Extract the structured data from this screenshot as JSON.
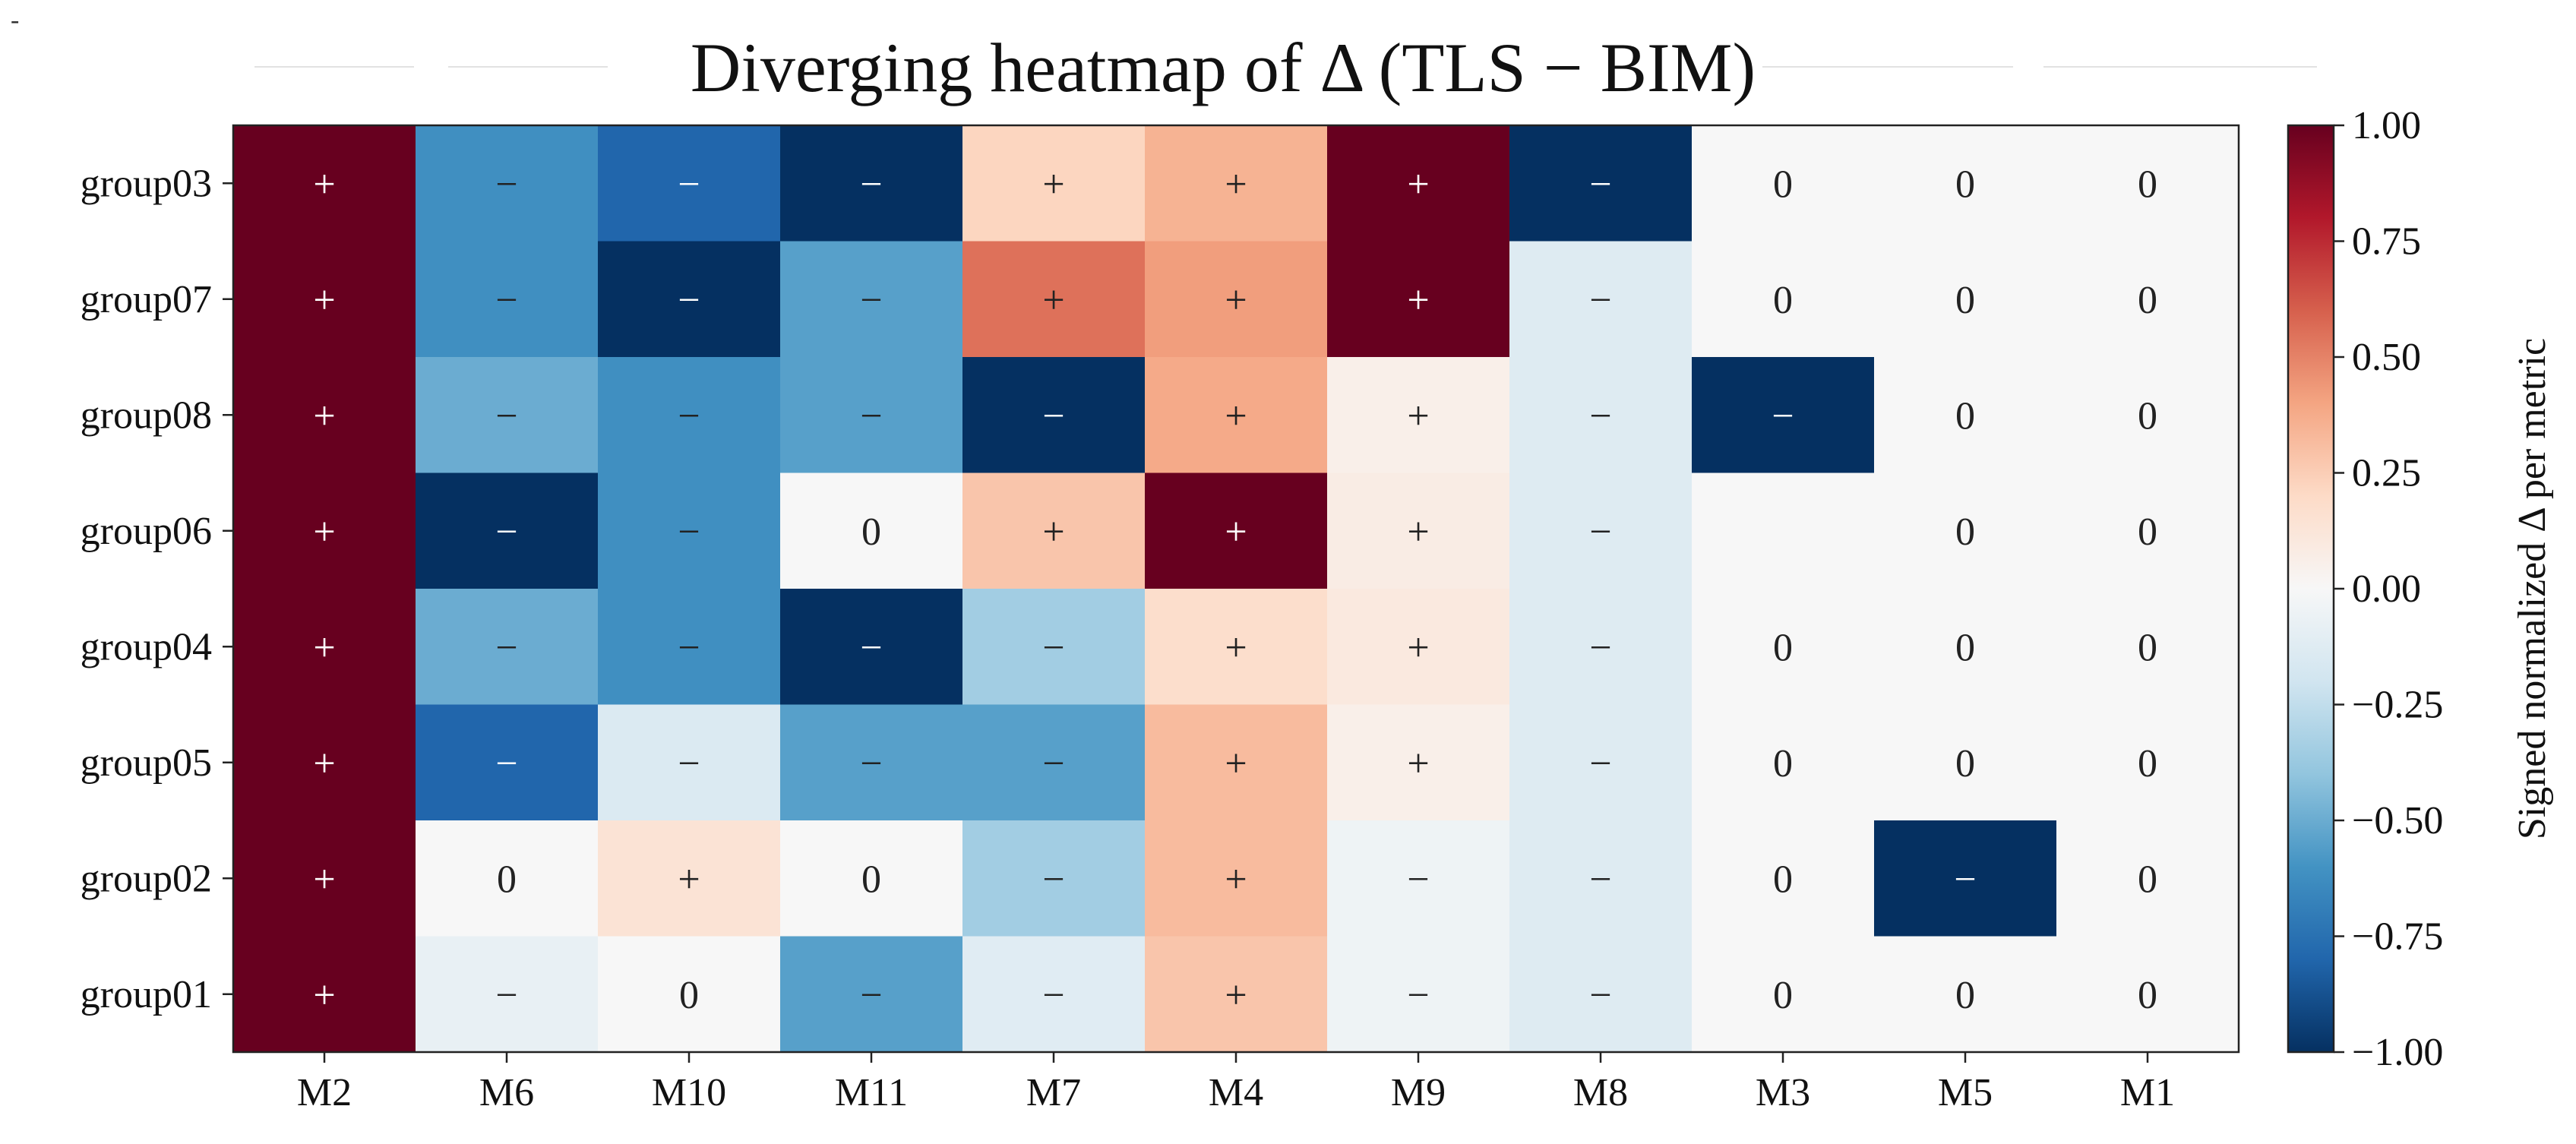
{
  "chart_data": {
    "type": "heatmap",
    "title": "Diverging heatmap of Δ (TLS − BIM)",
    "rows": [
      "group03",
      "group07",
      "group08",
      "group06",
      "group04",
      "group05",
      "group02",
      "group01"
    ],
    "columns": [
      "M2",
      "M6",
      "M10",
      "M11",
      "M7",
      "M4",
      "M9",
      "M8",
      "M3",
      "M5",
      "M1"
    ],
    "values": [
      [
        1.0,
        -0.62,
        -0.8,
        -1.0,
        0.22,
        0.35,
        1.0,
        -1.0,
        0.0,
        0.0,
        0.0
      ],
      [
        1.0,
        -0.62,
        -1.0,
        -0.55,
        0.55,
        0.42,
        1.0,
        -0.13,
        0.0,
        0.0,
        0.0
      ],
      [
        1.0,
        -0.5,
        -0.62,
        -0.55,
        -1.0,
        0.38,
        0.06,
        -0.13,
        -1.0,
        0.0,
        0.0
      ],
      [
        1.0,
        -1.0,
        -0.62,
        0.0,
        0.28,
        1.0,
        0.08,
        -0.13,
        0.0,
        0.0,
        0.0
      ],
      [
        1.0,
        -0.5,
        -0.62,
        -1.0,
        -0.35,
        0.18,
        0.1,
        -0.13,
        0.0,
        0.0,
        0.0
      ],
      [
        1.0,
        -0.8,
        -0.15,
        -0.55,
        -0.55,
        0.32,
        0.06,
        -0.13,
        0.0,
        0.0,
        0.0
      ],
      [
        1.0,
        0.0,
        0.14,
        0.0,
        -0.35,
        0.32,
        -0.05,
        -0.13,
        0.0,
        -1.0,
        0.0
      ],
      [
        1.0,
        -0.08,
        0.0,
        -0.55,
        -0.12,
        0.28,
        -0.05,
        -0.13,
        0.0,
        0.0,
        0.0
      ]
    ],
    "annotations": [
      [
        "+",
        "−",
        "−",
        "−",
        "+",
        "+",
        "+",
        "−",
        "0",
        "0",
        "0"
      ],
      [
        "+",
        "−",
        "−",
        "−",
        "+",
        "+",
        "+",
        "−",
        "0",
        "0",
        "0"
      ],
      [
        "+",
        "−",
        "−",
        "−",
        "−",
        "+",
        "+",
        "−",
        "−",
        "0",
        "0"
      ],
      [
        "+",
        "−",
        "−",
        "0",
        "+",
        "+",
        "+",
        "−",
        "",
        "0",
        "0"
      ],
      [
        "+",
        "−",
        "−",
        "−",
        "−",
        "+",
        "+",
        "−",
        "0",
        "0",
        "0"
      ],
      [
        "+",
        "−",
        "−",
        "−",
        "−",
        "+",
        "+",
        "−",
        "0",
        "0",
        "0"
      ],
      [
        "+",
        "0",
        "+",
        "0",
        "−",
        "+",
        "−",
        "−",
        "0",
        "−",
        "0"
      ],
      [
        "+",
        "−",
        "0",
        "−",
        "−",
        "+",
        "−",
        "−",
        "0",
        "0",
        "0"
      ]
    ],
    "colorbar": {
      "label": "Signed normalized Δ per metric",
      "range": [
        -1.0,
        1.0
      ],
      "ticks": [
        "1.00",
        "0.75",
        "0.50",
        "0.25",
        "0.00",
        "−0.25",
        "−0.50",
        "−0.75",
        "−1.00"
      ],
      "tick_values": [
        1.0,
        0.75,
        0.5,
        0.25,
        0.0,
        -0.25,
        -0.5,
        -0.75,
        -1.0
      ]
    },
    "colormap": {
      "name": "RdBu_r",
      "stops": [
        "#053061",
        "#2166ac",
        "#4393c3",
        "#92c5de",
        "#d1e5f0",
        "#f7f7f7",
        "#fddbc7",
        "#f4a582",
        "#d6604d",
        "#b2182b",
        "#67001f"
      ]
    }
  },
  "corner_mark": "-"
}
